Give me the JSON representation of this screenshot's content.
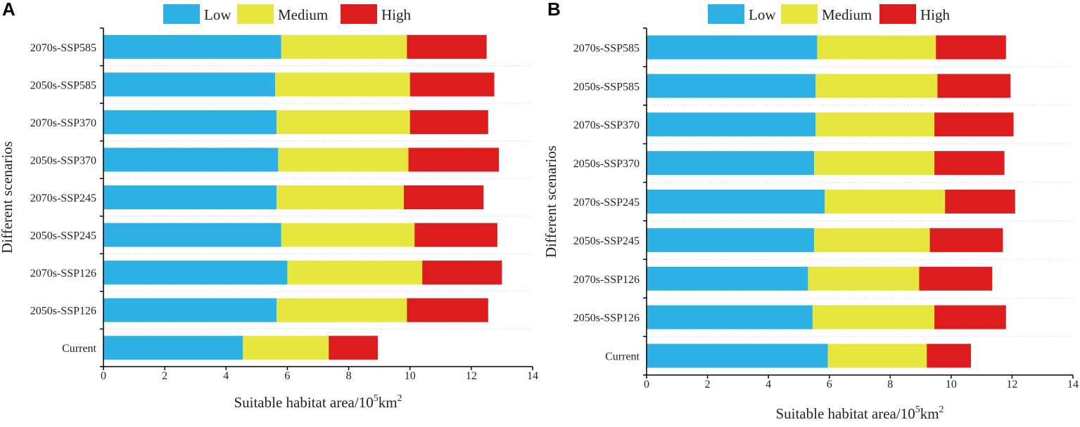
{
  "colors": {
    "low": "#2db0e3",
    "medium": "#e6e63e",
    "high": "#dd1c1e"
  },
  "chart_data": [
    {
      "type": "bar",
      "orientation": "horizontal",
      "stacked": true,
      "panel_label": "A",
      "title": "",
      "xlabel_main": "Suitable habitat area/10",
      "xlabel_sup": "5",
      "xlabel_unit": "km",
      "xlabel_unit_sup": "2",
      "ylabel": "Different scenarios",
      "xlim": [
        0,
        14
      ],
      "xticks": [
        0,
        2,
        4,
        6,
        8,
        10,
        12,
        14
      ],
      "tick_labels": [
        "0",
        "2",
        "4",
        "6",
        "8",
        "10",
        "12",
        "14"
      ],
      "legend": [
        "Low",
        "Medium",
        "High"
      ],
      "legend_position": "top",
      "categories": [
        "2070s-SSP585",
        "2050s-SSP585",
        "2070s-SSP370",
        "2050s-SSP370",
        "2070s-SSP245",
        "2050s-SSP245",
        "2070s-SSP126",
        "2050s-SSP126",
        "Current"
      ],
      "series": [
        {
          "name": "Low",
          "values": [
            5.8,
            5.6,
            5.65,
            5.7,
            5.65,
            5.8,
            6.0,
            5.65,
            4.55
          ]
        },
        {
          "name": "Medium",
          "values": [
            4.1,
            4.4,
            4.35,
            4.25,
            4.15,
            4.35,
            4.4,
            4.25,
            2.8
          ]
        },
        {
          "name": "High",
          "values": [
            2.6,
            2.75,
            2.55,
            2.95,
            2.6,
            2.7,
            2.6,
            2.65,
            1.6
          ]
        }
      ]
    },
    {
      "type": "bar",
      "orientation": "horizontal",
      "stacked": true,
      "panel_label": "B",
      "title": "",
      "xlabel_main": "Suitable habitat area/10",
      "xlabel_sup": "5",
      "xlabel_unit": "km",
      "xlabel_unit_sup": "2",
      "ylabel": "Different scenarios",
      "xlim": [
        0,
        14
      ],
      "xticks": [
        0,
        2,
        4,
        6,
        8,
        10,
        12,
        14
      ],
      "tick_labels": [
        "0",
        "2",
        "4",
        "6",
        "8",
        "10",
        "12",
        "14"
      ],
      "legend": [
        "Low",
        "Medium",
        "High"
      ],
      "legend_position": "top",
      "categories": [
        "2070s-SSP585",
        "2050s-SSP585",
        "2070s-SSP370",
        "2050s-SSP370",
        "2070s-SSP245",
        "2050s-SSP245",
        "2070s-SSP126",
        "2050s-SSP126",
        "Current"
      ],
      "series": [
        {
          "name": "Low",
          "values": [
            5.6,
            5.55,
            5.55,
            5.5,
            5.85,
            5.5,
            5.3,
            5.45,
            5.95
          ]
        },
        {
          "name": "Medium",
          "values": [
            3.9,
            4.0,
            3.9,
            3.95,
            3.95,
            3.8,
            3.65,
            4.0,
            3.25
          ]
        },
        {
          "name": "High",
          "values": [
            2.3,
            2.4,
            2.6,
            2.3,
            2.3,
            2.4,
            2.4,
            2.35,
            1.45
          ]
        }
      ]
    }
  ]
}
